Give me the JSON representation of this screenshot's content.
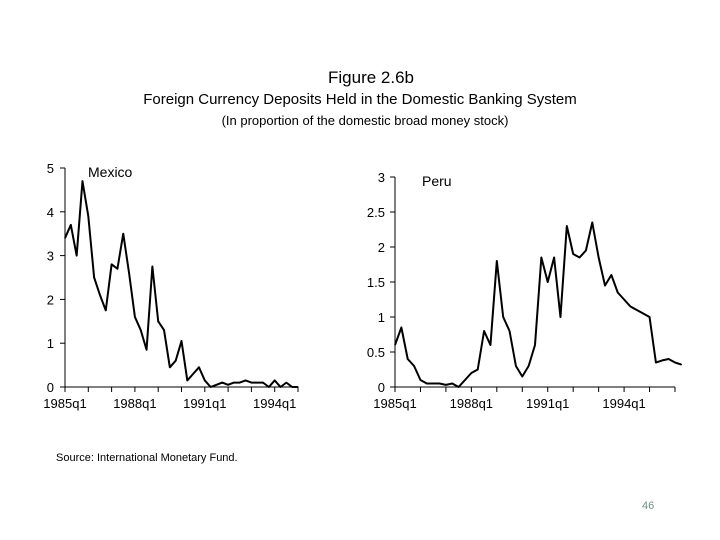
{
  "figure": {
    "title": "Figure 2.6b",
    "subtitle": "Foreign Currency Deposits Held in the Domestic Banking System",
    "subsubtitle": "(In proportion of the domestic broad money stock)"
  },
  "source": "Source: International Monetary Fund.",
  "page_number": "46",
  "chart_data": [
    {
      "type": "line",
      "title": "Mexico",
      "xlabel": "",
      "ylabel": "",
      "ylim": [
        0,
        5
      ],
      "yticks": [
        "0",
        "1",
        "2",
        "3",
        "4",
        "5"
      ],
      "xtick_labels": [
        "1985q1",
        "1988q1",
        "1991q1",
        "1994q1"
      ],
      "x_range": [
        0,
        40
      ],
      "x_tick_positions": [
        0,
        12,
        24,
        36
      ],
      "series": [
        {
          "name": "Mexico",
          "values": [
            3.4,
            3.7,
            3.0,
            4.7,
            3.9,
            2.5,
            2.1,
            1.75,
            2.8,
            2.7,
            3.5,
            2.6,
            1.6,
            1.3,
            0.85,
            2.75,
            1.5,
            1.3,
            0.45,
            0.6,
            1.05,
            0.15,
            0.3,
            0.45,
            0.15,
            0.0,
            0.05,
            0.1,
            0.05,
            0.1,
            0.1,
            0.15,
            0.1,
            0.1,
            0.1,
            0.0,
            0.15,
            0.0,
            0.1,
            0.0,
            0.0
          ]
        }
      ]
    },
    {
      "type": "line",
      "title": "Peru",
      "xlabel": "",
      "ylabel": "",
      "ylim": [
        0,
        3
      ],
      "yticks": [
        "0",
        "0.5",
        "1",
        "1.5",
        "2",
        "2.5",
        "3"
      ],
      "xtick_labels": [
        "1985q1",
        "1988q1",
        "1991q1",
        "1994q1"
      ],
      "x_range": [
        0,
        44
      ],
      "x_tick_positions": [
        0,
        12,
        24,
        36
      ],
      "series": [
        {
          "name": "Peru",
          "values": [
            0.6,
            0.85,
            0.4,
            0.3,
            0.1,
            0.05,
            0.05,
            0.05,
            0.03,
            0.05,
            0.0,
            0.1,
            0.2,
            0.25,
            0.8,
            0.6,
            1.8,
            1.0,
            0.8,
            0.3,
            0.15,
            0.3,
            0.6,
            1.85,
            1.5,
            1.85,
            1.0,
            2.3,
            1.9,
            1.85,
            1.95,
            2.35,
            1.85,
            1.45,
            1.6,
            1.35,
            1.25,
            1.15,
            1.1,
            1.05,
            1.0,
            0.35,
            0.38,
            0.4,
            0.35,
            0.32
          ]
        }
      ]
    }
  ]
}
